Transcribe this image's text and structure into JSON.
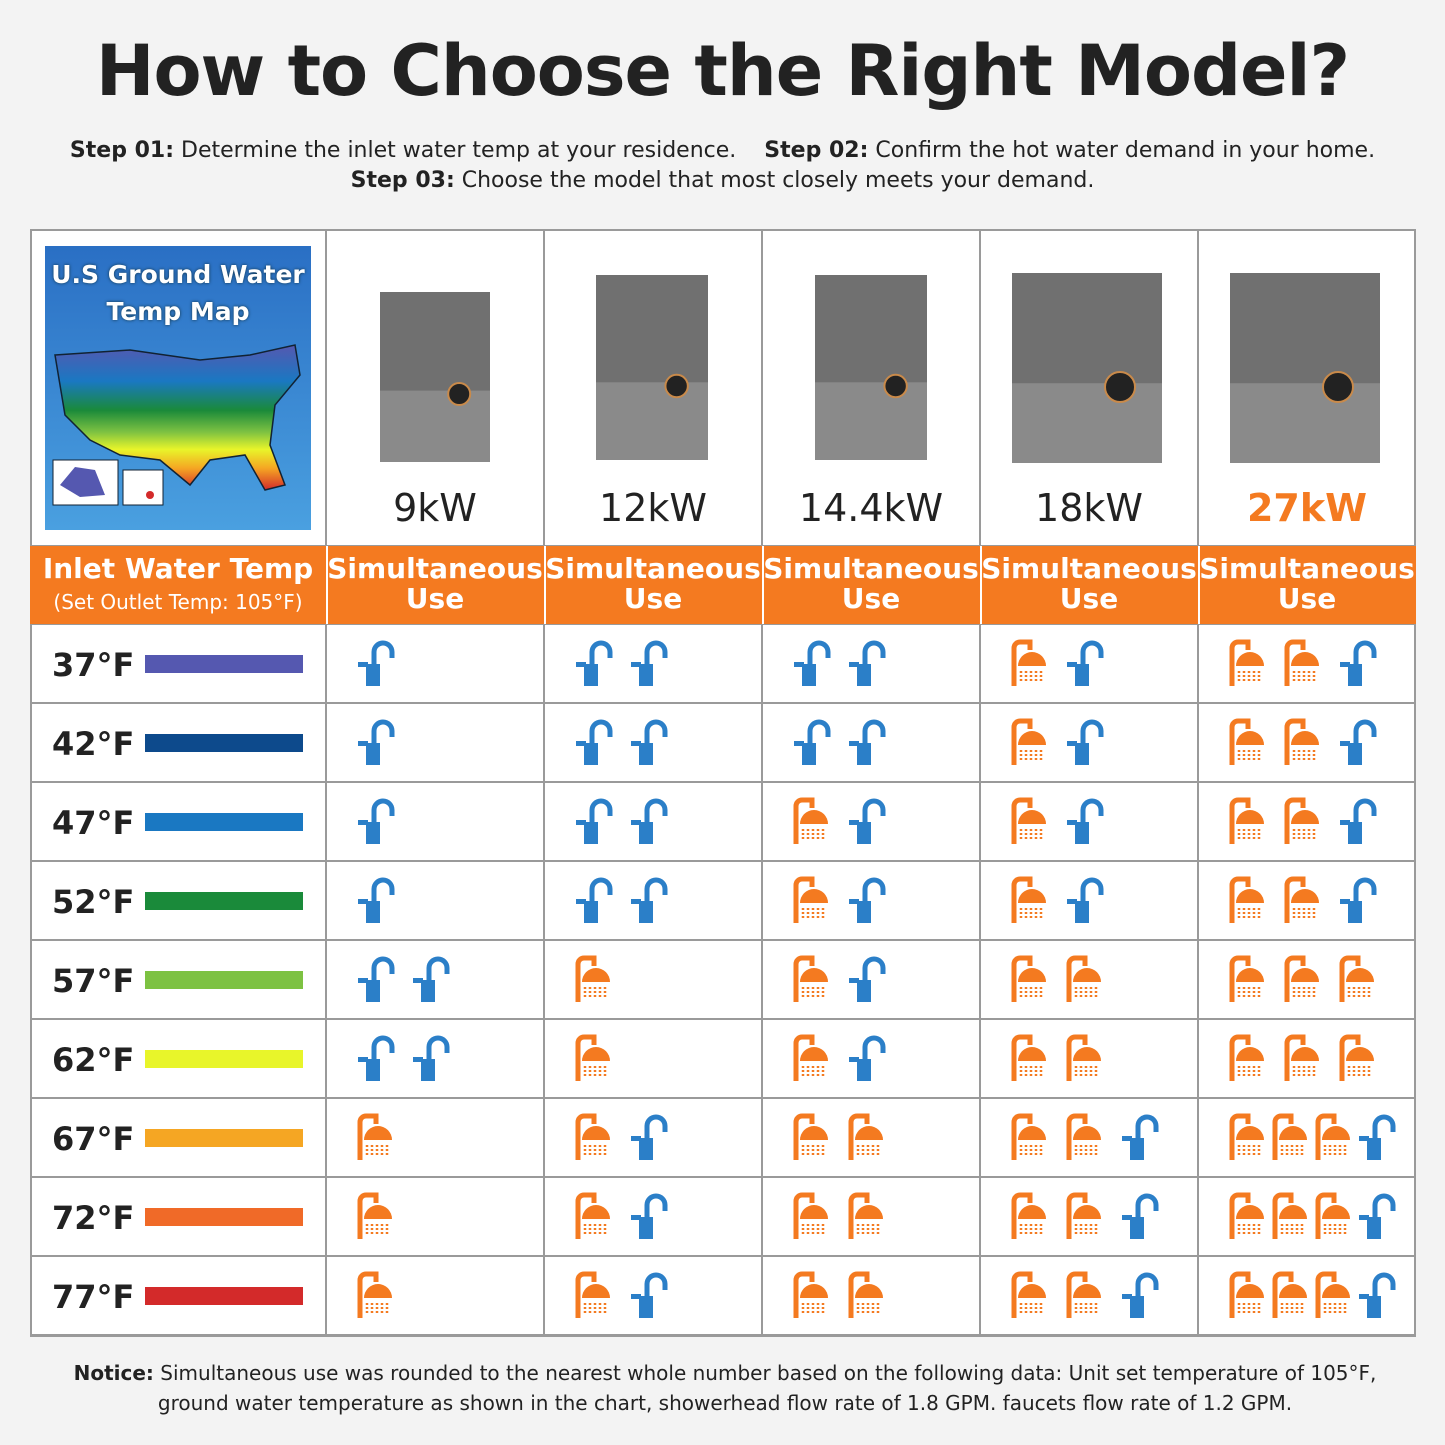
{
  "title": "How to Choose the Right Model?",
  "steps": [
    {
      "label": "Step 01:",
      "text": "Determine the inlet water temp at your residence."
    },
    {
      "label": "Step 02:",
      "text": "Confirm the hot water demand in your home."
    },
    {
      "label": "Step 03:",
      "text": "Choose the model that most closely meets your demand."
    }
  ],
  "map_title": "U.S Ground Water Temp Map",
  "header": {
    "title": "Inlet Water Temp",
    "subtitle": "(Set Outlet Temp: 105°F)",
    "highlight_color": "#f47a20"
  },
  "models": [
    {
      "name": "9kW",
      "use": "Simultaneous Use",
      "highlight": false
    },
    {
      "name": "12kW",
      "use": "Simultaneous Use",
      "highlight": false
    },
    {
      "name": "14.4kW",
      "use": "Simultaneous Use",
      "highlight": false
    },
    {
      "name": "18kW",
      "use": "Simultaneous Use",
      "highlight": false
    },
    {
      "name": "27kW",
      "use": "Simultaneous Use",
      "highlight": true
    }
  ],
  "rows": [
    {
      "temp": "37°F",
      "color": "#5558b0",
      "cells": [
        {
          "showers": 0,
          "faucets": 1
        },
        {
          "showers": 0,
          "faucets": 2
        },
        {
          "showers": 0,
          "faucets": 2
        },
        {
          "showers": 1,
          "faucets": 1
        },
        {
          "showers": 2,
          "faucets": 1
        }
      ]
    },
    {
      "temp": "42°F",
      "color": "#0d4a8c",
      "cells": [
        {
          "showers": 0,
          "faucets": 1
        },
        {
          "showers": 0,
          "faucets": 2
        },
        {
          "showers": 0,
          "faucets": 2
        },
        {
          "showers": 1,
          "faucets": 1
        },
        {
          "showers": 2,
          "faucets": 1
        }
      ]
    },
    {
      "temp": "47°F",
      "color": "#1a78c2",
      "cells": [
        {
          "showers": 0,
          "faucets": 1
        },
        {
          "showers": 0,
          "faucets": 2
        },
        {
          "showers": 1,
          "faucets": 1
        },
        {
          "showers": 1,
          "faucets": 1
        },
        {
          "showers": 2,
          "faucets": 1
        }
      ]
    },
    {
      "temp": "52°F",
      "color": "#1a8a3a",
      "cells": [
        {
          "showers": 0,
          "faucets": 1
        },
        {
          "showers": 0,
          "faucets": 2
        },
        {
          "showers": 1,
          "faucets": 1
        },
        {
          "showers": 1,
          "faucets": 1
        },
        {
          "showers": 2,
          "faucets": 1
        }
      ]
    },
    {
      "temp": "57°F",
      "color": "#7dc242",
      "cells": [
        {
          "showers": 0,
          "faucets": 2
        },
        {
          "showers": 1,
          "faucets": 0
        },
        {
          "showers": 1,
          "faucets": 1
        },
        {
          "showers": 2,
          "faucets": 0
        },
        {
          "showers": 3,
          "faucets": 0
        }
      ]
    },
    {
      "temp": "62°F",
      "color": "#e8f52a",
      "cells": [
        {
          "showers": 0,
          "faucets": 2
        },
        {
          "showers": 1,
          "faucets": 0
        },
        {
          "showers": 1,
          "faucets": 1
        },
        {
          "showers": 2,
          "faucets": 0
        },
        {
          "showers": 3,
          "faucets": 0
        }
      ]
    },
    {
      "temp": "67°F",
      "color": "#f5a623",
      "cells": [
        {
          "showers": 1,
          "faucets": 0
        },
        {
          "showers": 1,
          "faucets": 1
        },
        {
          "showers": 2,
          "faucets": 0
        },
        {
          "showers": 2,
          "faucets": 1
        },
        {
          "showers": 3,
          "faucets": 1
        }
      ]
    },
    {
      "temp": "72°F",
      "color": "#f06a28",
      "cells": [
        {
          "showers": 1,
          "faucets": 0
        },
        {
          "showers": 1,
          "faucets": 1
        },
        {
          "showers": 2,
          "faucets": 0
        },
        {
          "showers": 2,
          "faucets": 1
        },
        {
          "showers": 3,
          "faucets": 1
        }
      ]
    },
    {
      "temp": "77°F",
      "color": "#d32a2a",
      "cells": [
        {
          "showers": 1,
          "faucets": 0
        },
        {
          "showers": 1,
          "faucets": 1
        },
        {
          "showers": 2,
          "faucets": 0
        },
        {
          "showers": 2,
          "faucets": 1
        },
        {
          "showers": 3,
          "faucets": 1
        }
      ]
    }
  ],
  "notice": {
    "label": "Notice:",
    "text": "Simultaneous use was rounded to the nearest whole number based on the following data: Unit set temperature of 105°F, ground water temperature as shown in the chart, showerhead flow rate of 1.8 GPM. faucets flow rate of 1.2 GPM."
  }
}
